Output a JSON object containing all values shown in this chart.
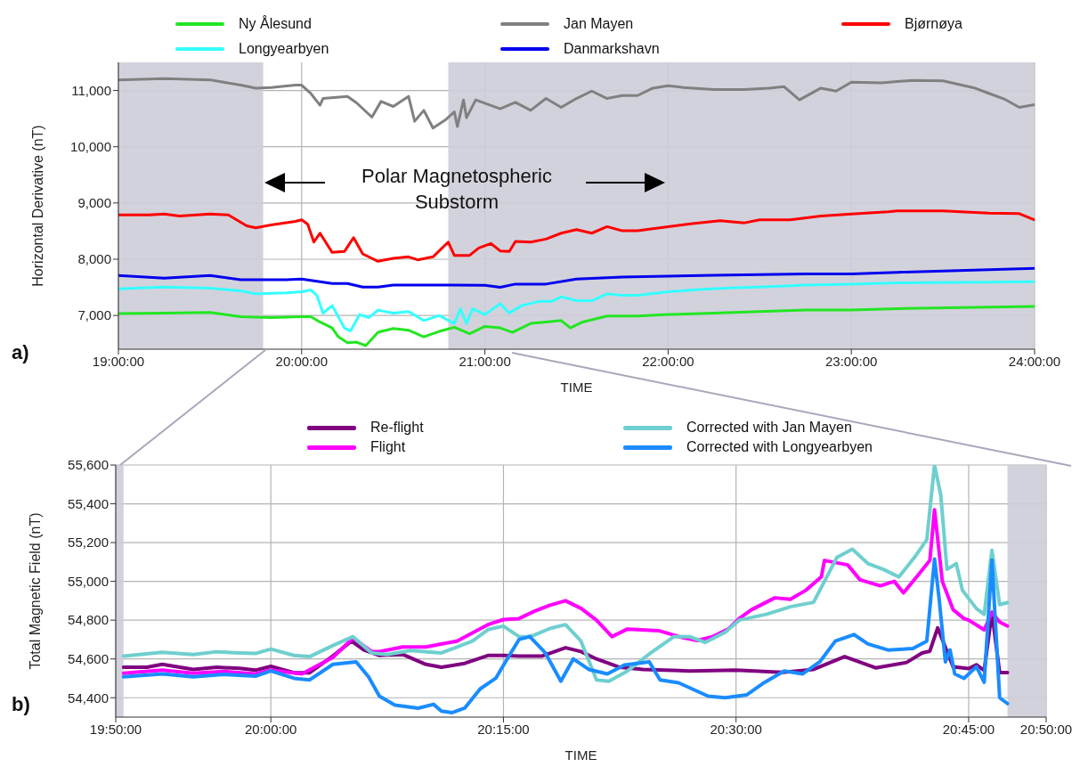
{
  "chart_data": [
    {
      "type": "line",
      "xlabel": "TIME",
      "ylabel": "Horizontal Derivative (nT)",
      "annotations": [
        "a)",
        "Polar Magnetospheric Substorm"
      ],
      "legend": "top",
      "grid": true,
      "xlim": [
        19,
        24
      ],
      "xticks": [
        {
          "value": 19,
          "label": "19:00:00"
        },
        {
          "value": 20,
          "label": "20:00:00"
        },
        {
          "value": 21,
          "label": "21:00:00"
        },
        {
          "value": 22,
          "label": "22:00:00"
        },
        {
          "value": 23,
          "label": "23:00:00"
        },
        {
          "value": 24,
          "label": "24:00:00"
        }
      ],
      "ylim": [
        6400,
        11500
      ],
      "yticks": [
        {
          "value": 7000,
          "label": "7,000"
        },
        {
          "value": 8000,
          "label": "8,000"
        },
        {
          "value": 9000,
          "label": "9,000"
        },
        {
          "value": 10000,
          "label": "10,000"
        },
        {
          "value": 11000,
          "label": "11,000"
        }
      ],
      "bands": [
        {
          "axis": "x",
          "from": 19,
          "to": 19.79,
          "color": "#cdcdd8"
        },
        {
          "axis": "x",
          "from": 20.8,
          "to": 24,
          "color": "#cdcdd8"
        }
      ],
      "series": [
        {
          "name": "Ny Ålesund",
          "color": "#22e622",
          "x": [
            19,
            19.25,
            19.5,
            19.6667,
            19.8333,
            20,
            20.05,
            20.1,
            20.1667,
            20.2,
            20.25,
            20.3,
            20.35,
            20.4167,
            20.5,
            20.5833,
            20.6667,
            20.75,
            20.8333,
            20.9167,
            21,
            21.0833,
            21.15,
            21.25,
            21.3333,
            21.4167,
            21.4667,
            21.5333,
            21.6667,
            21.8333,
            22,
            22.25,
            22.5,
            22.75,
            23,
            23.25,
            24
          ],
          "values": [
            7032,
            7042,
            7053,
            6979,
            6963,
            6979,
            6979,
            6884,
            6779,
            6621,
            6516,
            6526,
            6463,
            6700,
            6768,
            6737,
            6621,
            6716,
            6789,
            6674,
            6805,
            6779,
            6700,
            6858,
            6884,
            6910,
            6779,
            6884,
            6989,
            6989,
            7016,
            7042,
            7068,
            7095,
            7095,
            7121,
            7160
          ]
        },
        {
          "name": "Longyearbyen",
          "color": "#33ffff",
          "x": [
            19,
            19.25,
            19.5,
            19.6667,
            19.75,
            19.9167,
            20,
            20.05,
            20.0833,
            20.1167,
            20.1667,
            20.2333,
            20.2667,
            20.3167,
            20.3667,
            20.4167,
            20.5,
            20.5833,
            20.6667,
            20.75,
            20.8333,
            20.8667,
            20.9,
            20.9333,
            21,
            21.0833,
            21.1333,
            21.2,
            21.3,
            21.3667,
            21.4167,
            21.5,
            21.5833,
            21.6667,
            21.75,
            21.8333,
            22,
            22.1667,
            22.3333,
            22.5,
            22.75,
            23,
            23.25,
            24
          ],
          "values": [
            7474,
            7505,
            7484,
            7437,
            7384,
            7400,
            7421,
            7453,
            7358,
            7042,
            7174,
            6779,
            6726,
            7016,
            6963,
            7095,
            7042,
            7068,
            6910,
            7000,
            6858,
            7121,
            6858,
            7121,
            7016,
            7210,
            7042,
            7174,
            7253,
            7253,
            7332,
            7263,
            7263,
            7384,
            7358,
            7358,
            7421,
            7463,
            7489,
            7505,
            7542,
            7558,
            7579,
            7600
          ]
        },
        {
          "name": "Jan Mayen",
          "color": "#808080",
          "x": [
            19,
            19.25,
            19.5,
            19.6667,
            19.75,
            19.8333,
            19.9667,
            20,
            20.05,
            20.1,
            20.1167,
            20.25,
            20.3,
            20.3833,
            20.4333,
            20.5,
            20.5833,
            20.6167,
            20.6667,
            20.7167,
            20.7833,
            20.8333,
            20.85,
            20.8833,
            20.9,
            20.95,
            21.0833,
            21.1667,
            21.25,
            21.3333,
            21.4167,
            21.5,
            21.5833,
            21.6667,
            21.75,
            21.8333,
            21.9167,
            22,
            22.0833,
            22.25,
            22.4167,
            22.55,
            22.6333,
            22.7167,
            22.8333,
            22.9167,
            23,
            23.1667,
            23.25,
            23.3333,
            23.5,
            23.6667,
            23.75,
            23.8333,
            23.9167,
            24
          ],
          "values": [
            11189,
            11210,
            11189,
            11095,
            11042,
            11053,
            11095,
            11095,
            10947,
            10737,
            10858,
            10895,
            10779,
            10526,
            10805,
            10716,
            10895,
            10453,
            10647,
            10332,
            10474,
            10621,
            10358,
            10832,
            10516,
            10832,
            10674,
            10790,
            10647,
            10858,
            10700,
            10858,
            10989,
            10858,
            10910,
            10910,
            11042,
            11084,
            11053,
            11016,
            11016,
            11042,
            11068,
            10832,
            11042,
            10989,
            11147,
            11137,
            11158,
            11180,
            11170,
            11050,
            10950,
            10850,
            10700,
            10750
          ]
        },
        {
          "name": "Danmarkshavn",
          "color": "#0000ee",
          "x": [
            19,
            19.25,
            19.5,
            19.6667,
            19.9167,
            20,
            20.1667,
            20.25,
            20.3333,
            20.4167,
            20.5,
            20.75,
            21,
            21.0833,
            21.1667,
            21.3333,
            21.5,
            21.75,
            22,
            22.25,
            22.5,
            22.75,
            23,
            23.25,
            24
          ],
          "values": [
            7710,
            7663,
            7710,
            7637,
            7637,
            7647,
            7568,
            7568,
            7505,
            7505,
            7542,
            7542,
            7537,
            7500,
            7558,
            7558,
            7647,
            7684,
            7700,
            7716,
            7726,
            7737,
            7737,
            7768,
            7837
          ]
        },
        {
          "name": "Bjørnøya",
          "color": "#ff0000",
          "x": [
            19,
            19.1667,
            19.25,
            19.3333,
            19.5,
            19.6,
            19.7,
            19.75,
            19.8333,
            19.9667,
            20,
            20.0333,
            20.0667,
            20.1,
            20.1667,
            20.2333,
            20.2833,
            20.3333,
            20.4167,
            20.5,
            20.5833,
            20.6333,
            20.7167,
            20.8,
            20.8333,
            20.9167,
            20.9667,
            21.0333,
            21.0833,
            21.1333,
            21.1667,
            21.25,
            21.3333,
            21.4167,
            21.5,
            21.5833,
            21.6667,
            21.75,
            21.8333,
            22,
            22.1333,
            22.2833,
            22.4167,
            22.5,
            22.6667,
            22.8333,
            23,
            23.2,
            23.25,
            23.5,
            23.75,
            23.9167,
            24
          ],
          "values": [
            8789,
            8789,
            8805,
            8768,
            8805,
            8789,
            8595,
            8558,
            8610,
            8674,
            8700,
            8621,
            8305,
            8463,
            8121,
            8137,
            8384,
            8095,
            7963,
            8016,
            8042,
            7989,
            8042,
            8305,
            8068,
            8068,
            8200,
            8279,
            8147,
            8137,
            8316,
            8305,
            8358,
            8463,
            8526,
            8463,
            8579,
            8505,
            8505,
            8579,
            8632,
            8684,
            8647,
            8700,
            8700,
            8768,
            8805,
            8842,
            8858,
            8860,
            8820,
            8810,
            8700
          ]
        }
      ]
    },
    {
      "type": "line",
      "xlabel": "TIME",
      "ylabel": "Total Magnetic Field (nT)",
      "annotations": [
        "b)"
      ],
      "legend": "top",
      "grid": true,
      "xlim": [
        19.8333,
        20.8333
      ],
      "xticks": [
        {
          "value": 19.8333,
          "label": "19:50:00"
        },
        {
          "value": 20,
          "label": "20:00:00"
        },
        {
          "value": 20.25,
          "label": "20:15:00"
        },
        {
          "value": 20.5,
          "label": "20:30:00"
        },
        {
          "value": 20.75,
          "label": "20:45:00"
        },
        {
          "value": 20.8333,
          "label": "20:50:00"
        }
      ],
      "ylim": [
        54300,
        55600
      ],
      "yticks": [
        {
          "value": 54400,
          "label": "54,400"
        },
        {
          "value": 54600,
          "label": "54,600"
        },
        {
          "value": 54800,
          "label": "54,800"
        },
        {
          "value": 55000,
          "label": "55,000"
        },
        {
          "value": 55200,
          "label": "55,200"
        },
        {
          "value": 55400,
          "label": "55,400"
        },
        {
          "value": 55600,
          "label": "55,600"
        }
      ],
      "bands": [
        {
          "axis": "x",
          "from": 19.8333,
          "to": 19.8417,
          "color": "#cdcdd8"
        },
        {
          "axis": "x",
          "from": 20.7917,
          "to": 20.8333,
          "color": "#cdcdd8"
        }
      ],
      "series": [
        {
          "name": "Re-flight",
          "color": "#800080",
          "x": [
            19.8417,
            19.8667,
            19.8833,
            19.9167,
            19.9417,
            19.9667,
            19.9833,
            20,
            20.025,
            20.0417,
            20.0667,
            20.0867,
            20.1,
            20.1167,
            20.1417,
            20.1667,
            20.1833,
            20.2083,
            20.2333,
            20.25,
            20.2667,
            20.2917,
            20.3167,
            20.3333,
            20.35,
            20.375,
            20.4,
            20.45,
            20.5,
            20.55,
            20.5833,
            20.6167,
            20.65,
            20.6833,
            20.7,
            20.7083,
            20.7167,
            20.7333,
            20.75,
            20.7583,
            20.7667,
            20.775,
            20.7833,
            20.7917
          ],
          "values": [
            54557,
            54557,
            54572,
            54546,
            54557,
            54551,
            54542,
            54562,
            54529,
            54529,
            54615,
            54692,
            54646,
            54618,
            54623,
            54572,
            54557,
            54577,
            54618,
            54618,
            54615,
            54615,
            54658,
            54638,
            54600,
            54557,
            54546,
            54538,
            54542,
            54531,
            54546,
            54612,
            54554,
            54582,
            54631,
            54640,
            54760,
            54560,
            54550,
            54570,
            54540,
            54840,
            54530,
            54530
          ]
        },
        {
          "name": "Flight",
          "color": "#ff00ff",
          "x": [
            19.8417,
            19.8833,
            19.9167,
            19.95,
            19.9833,
            20,
            20.0333,
            20.0667,
            20.0883,
            20.1083,
            20.1167,
            20.1417,
            20.1667,
            20.2,
            20.2333,
            20.25,
            20.2667,
            20.2833,
            20.3,
            20.3167,
            20.3333,
            20.35,
            20.3667,
            20.3833,
            20.4167,
            20.4417,
            20.4583,
            20.475,
            20.4917,
            20.5033,
            20.5167,
            20.5417,
            20.5583,
            20.575,
            20.5917,
            20.595,
            20.62,
            20.6333,
            20.655,
            20.67,
            20.68,
            20.6967,
            20.7083,
            20.7133,
            20.7217,
            20.7333,
            20.745,
            20.75,
            20.7667,
            20.775,
            20.7833,
            20.7917
          ],
          "values": [
            54526,
            54542,
            54526,
            54535,
            54523,
            54542,
            54523,
            54608,
            54708,
            54638,
            54638,
            54662,
            54662,
            54692,
            54777,
            54803,
            54808,
            54846,
            54877,
            54900,
            54861,
            54800,
            54715,
            54754,
            54746,
            54711,
            54695,
            54715,
            54754,
            54808,
            54854,
            54915,
            54908,
            54954,
            55023,
            55108,
            55085,
            55008,
            54977,
            55000,
            54941,
            55038,
            55108,
            55369,
            55000,
            54854,
            54808,
            54800,
            54750,
            54840,
            54790,
            54770
          ]
        },
        {
          "name": "Corrected with Jan Mayen",
          "color": "#6fcfcf",
          "x": [
            19.8417,
            19.8833,
            19.9167,
            19.9417,
            19.9667,
            19.9833,
            20,
            20.025,
            20.0417,
            20.0667,
            20.0883,
            20.1083,
            20.125,
            20.15,
            20.1833,
            20.2167,
            20.2333,
            20.25,
            20.2667,
            20.275,
            20.2833,
            20.3,
            20.3167,
            20.3333,
            20.35,
            20.3633,
            20.3833,
            20.4083,
            20.4333,
            20.45,
            20.4667,
            20.4883,
            20.5033,
            20.5333,
            20.5583,
            20.5833,
            20.595,
            20.6083,
            20.625,
            20.6417,
            20.6583,
            20.675,
            20.6917,
            20.705,
            20.7133,
            20.72,
            20.7267,
            20.7367,
            20.7433,
            20.7583,
            20.7667,
            20.775,
            20.7833,
            20.7917
          ],
          "values": [
            54615,
            54634,
            54623,
            54637,
            54631,
            54628,
            54651,
            54618,
            54612,
            54669,
            54715,
            54631,
            54623,
            54643,
            54631,
            54692,
            54751,
            54769,
            54715,
            54715,
            54723,
            54757,
            54777,
            54692,
            54492,
            54485,
            54538,
            54631,
            54715,
            54715,
            54685,
            54738,
            54800,
            54831,
            54869,
            54892,
            55000,
            55123,
            55166,
            55092,
            55062,
            55023,
            55123,
            55215,
            55600,
            55446,
            55062,
            55092,
            54954,
            54860,
            54830,
            55160,
            54880,
            54890
          ]
        },
        {
          "name": "Corrected with Longyearbyen",
          "color": "#1a8cff",
          "x": [
            19.8417,
            19.8833,
            19.9167,
            19.95,
            19.9833,
            20,
            20.025,
            20.0417,
            20.0667,
            20.0917,
            20.105,
            20.1167,
            20.1333,
            20.1583,
            20.175,
            20.1833,
            20.195,
            20.2083,
            20.225,
            20.2417,
            20.255,
            20.2667,
            20.2783,
            20.295,
            20.3117,
            20.325,
            20.3417,
            20.3617,
            20.38,
            20.4067,
            20.4183,
            20.4383,
            20.47,
            20.4883,
            20.5117,
            20.53,
            20.5517,
            20.5717,
            20.59,
            20.6067,
            20.6267,
            20.6417,
            20.6633,
            20.69,
            20.705,
            20.7133,
            20.7183,
            20.725,
            20.73,
            20.735,
            20.745,
            20.7583,
            20.7667,
            20.775,
            20.7833,
            20.7917
          ],
          "values": [
            54508,
            54523,
            54508,
            54520,
            54511,
            54538,
            54500,
            54492,
            54572,
            54585,
            54508,
            54408,
            54362,
            54346,
            54366,
            54331,
            54323,
            54346,
            54446,
            54500,
            54608,
            54700,
            54715,
            54631,
            54485,
            54600,
            54546,
            54523,
            54569,
            54585,
            54492,
            54477,
            54408,
            54400,
            54415,
            54477,
            54538,
            54523,
            54585,
            54692,
            54726,
            54677,
            54646,
            54654,
            54692,
            55115,
            54908,
            54585,
            54646,
            54523,
            54500,
            54560,
            54480,
            55110,
            54400,
            54370
          ]
        }
      ]
    }
  ]
}
